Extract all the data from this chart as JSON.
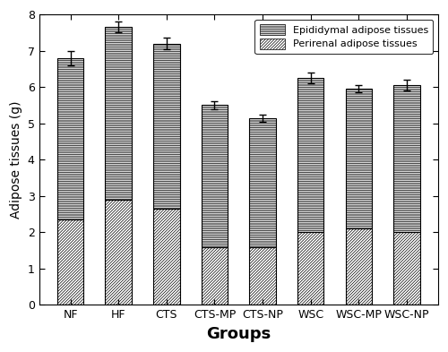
{
  "categories": [
    "NF",
    "HF",
    "CTS",
    "CTS-MP",
    "CTS-NP",
    "WSC",
    "WSC-MP",
    "WSC-NP"
  ],
  "perirenal_values": [
    2.35,
    2.9,
    2.65,
    1.6,
    1.6,
    2.0,
    2.1,
    2.0
  ],
  "epididymal_values": [
    4.45,
    4.75,
    4.55,
    3.9,
    3.55,
    4.25,
    3.85,
    4.05
  ],
  "total_values": [
    6.8,
    7.65,
    7.2,
    5.5,
    5.15,
    6.25,
    5.95,
    6.05
  ],
  "total_errors": [
    0.2,
    0.15,
    0.15,
    0.1,
    0.1,
    0.15,
    0.1,
    0.15
  ],
  "ylabel": "Adipose tissues (g)",
  "xlabel": "Groups",
  "ylim": [
    0,
    8
  ],
  "yticks": [
    0,
    1,
    2,
    3,
    4,
    5,
    6,
    7,
    8
  ],
  "legend_epididymal": "Epididymal adipose tissues",
  "legend_perirenal": "Perirenal adipose tissues",
  "bar_width": 0.55,
  "hatch_epididymal": "----------",
  "hatch_perirenal": "//////////",
  "bar_edgecolor": "#000000",
  "bar_facecolor": "#ffffff",
  "xlabel_fontsize": 13,
  "ylabel_fontsize": 10,
  "xlabel_fontweight": "bold",
  "tick_fontsize": 9,
  "legend_fontsize": 8
}
